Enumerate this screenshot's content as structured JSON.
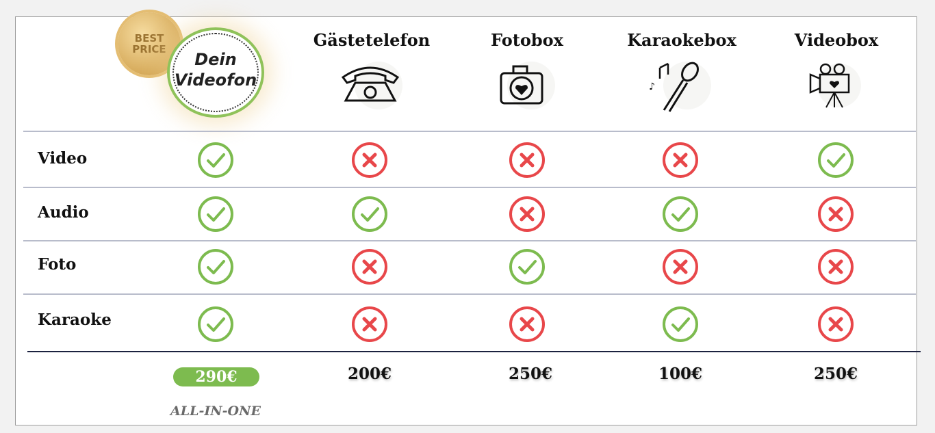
{
  "logo": {
    "badge_text": "BEST PRICE",
    "brand": "Dein Videofon"
  },
  "columns": [
    {
      "name": "Dein Videofon",
      "icon": "videofon-logo"
    },
    {
      "name": "Gästetelefon",
      "icon": "telephone-icon"
    },
    {
      "name": "Fotobox",
      "icon": "camera-heart-icon"
    },
    {
      "name": "Karaokebox",
      "icon": "microphone-icon"
    },
    {
      "name": "Videobox",
      "icon": "video-camera-icon"
    }
  ],
  "rows": [
    {
      "label": "Video",
      "values": [
        true,
        false,
        false,
        false,
        true
      ]
    },
    {
      "label": "Audio",
      "values": [
        true,
        true,
        false,
        true,
        false
      ]
    },
    {
      "label": "Foto",
      "values": [
        true,
        false,
        true,
        false,
        false
      ]
    },
    {
      "label": "Karaoke",
      "values": [
        true,
        false,
        false,
        true,
        false
      ]
    }
  ],
  "prices": [
    "290€",
    "200€",
    "250€",
    "100€",
    "250€"
  ],
  "highlight_note": "ALL-IN-ONE",
  "colors": {
    "check": "#7dbb4f",
    "cross": "#e8474a",
    "highlight": "#7dbb4f"
  }
}
